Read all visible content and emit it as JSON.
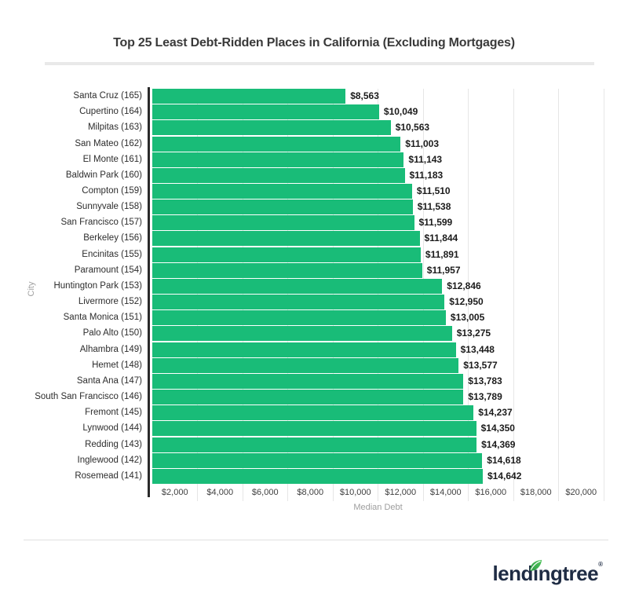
{
  "page": {
    "title": "Top 25 Least Debt-Ridden Places in California (Excluding Mortgages)"
  },
  "chart_data": {
    "type": "bar",
    "orientation": "horizontal",
    "title": "Top 25 Least Debt-Ridden Places in California (Excluding Mortgages)",
    "xlabel": "Median Debt",
    "ylabel": "City",
    "xlim": [
      0,
      20000
    ],
    "grid": true,
    "x_ticks": [
      "$2,000",
      "$4,000",
      "$6,000",
      "$8,000",
      "$10,000",
      "$12,000",
      "$14,000",
      "$16,000",
      "$18,000",
      "$20,000"
    ],
    "x_tick_values": [
      2000,
      4000,
      6000,
      8000,
      10000,
      12000,
      14000,
      16000,
      18000,
      20000
    ],
    "categories": [
      "Santa Cruz (165)",
      "Cupertino (164)",
      "Milpitas (163)",
      "San Mateo (162)",
      "El Monte (161)",
      "Baldwin Park (160)",
      "Compton (159)",
      "Sunnyvale (158)",
      "San Francisco (157)",
      "Berkeley (156)",
      "Encinitas (155)",
      "Paramount (154)",
      "Huntington Park (153)",
      "Livermore (152)",
      "Santa Monica (151)",
      "Palo Alto (150)",
      "Alhambra (149)",
      "Hemet (148)",
      "Santa Ana (147)",
      "South San Francisco (146)",
      "Fremont (145)",
      "Lynwood (144)",
      "Redding (143)",
      "Inglewood (142)",
      "Rosemead (141)"
    ],
    "values": [
      8563,
      10049,
      10563,
      11003,
      11143,
      11183,
      11510,
      11538,
      11599,
      11844,
      11891,
      11957,
      12846,
      12950,
      13005,
      13275,
      13448,
      13577,
      13783,
      13789,
      14237,
      14350,
      14369,
      14618,
      14642
    ],
    "value_labels": [
      "$8,563",
      "$10,049",
      "$10,563",
      "$11,003",
      "$11,143",
      "$11,183",
      "$11,510",
      "$11,538",
      "$11,599",
      "$11,844",
      "$11,891",
      "$11,957",
      "$12,846",
      "$12,950",
      "$13,005",
      "$13,275",
      "$13,448",
      "$13,577",
      "$13,783",
      "$13,789",
      "$14,237",
      "$14,350",
      "$14,369",
      "$14,618",
      "$14,642"
    ]
  },
  "colors": {
    "bar": "#19bc78",
    "axis": "#2a2a2a",
    "gridline": "#e6e6e6",
    "title_text": "#3a3a3a",
    "muted_text": "#9e9e9e",
    "logo_navy": "#1f2c44",
    "leaf_green": "#3aa94d"
  },
  "logo": {
    "text": "lendingtree",
    "part1": "lend",
    "part2": "ı",
    "part3": "ngtree",
    "registered": "®"
  }
}
